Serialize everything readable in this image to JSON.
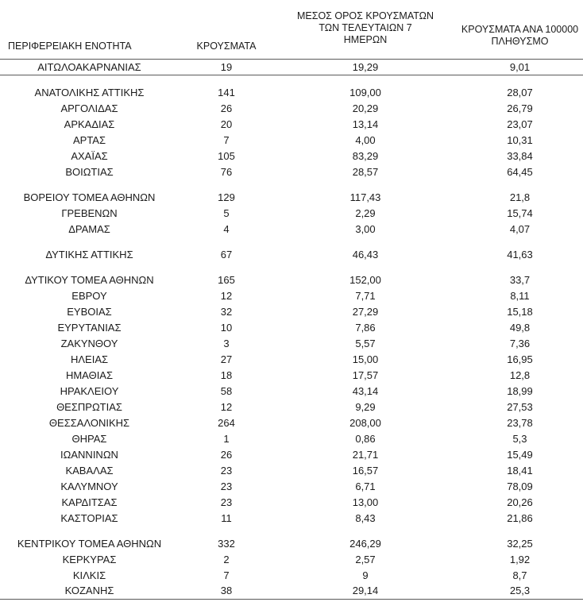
{
  "page": {
    "background": "#ffffff",
    "text_color": "#1b1b1b",
    "rule_color": "#5a5a5a"
  },
  "table": {
    "columns": [
      {
        "id": "region",
        "label": "ΠΕΡΙΦΕΡΕΙΑΚΗ ΕΝΟΤΗΤΑ"
      },
      {
        "id": "cases",
        "label": "ΚΡΟΥΣΜΑΤΑ"
      },
      {
        "id": "avg_7day",
        "label": "ΜΕΣΟΣ ΟΡΟΣ ΚΡΟΥΣΜΑΤΩΝ\nΤΩΝ ΤΕΛΕΥΤΑΙΩΝ 7\nΗΜΕΡΩΝ"
      },
      {
        "id": "per_100k",
        "label": "ΚΡΟΥΣΜΑΤΑ ΑΝΑ 100000\nΠΛΗΘΥΣΜΟ"
      }
    ],
    "groups": [
      {
        "start": 0,
        "count": 1,
        "rule_after": true
      },
      {
        "start": 1,
        "count": 6,
        "rule_after": false
      },
      {
        "start": 7,
        "count": 3,
        "rule_after": false
      },
      {
        "start": 10,
        "count": 1,
        "rule_after": false
      },
      {
        "start": 11,
        "count": 16,
        "rule_after": false
      },
      {
        "start": 27,
        "count": 4,
        "rule_after": false
      }
    ]
  },
  "chart_data": {
    "type": "table",
    "columns": [
      "ΠΕΡΙΦΕΡΕΙΑΚΗ ΕΝΟΤΗΤΑ",
      "ΚΡΟΥΣΜΑΤΑ",
      "ΜΕΣΟΣ ΟΡΟΣ ΚΡΟΥΣΜΑΤΩΝ ΤΩΝ ΤΕΛΕΥΤΑΙΩΝ 7 ΗΜΕΡΩΝ",
      "ΚΡΟΥΣΜΑΤΑ ΑΝΑ 100000 ΠΛΗΘΥΣΜΟ"
    ],
    "rows": [
      [
        "ΑΙΤΩΛΟΑΚΑΡΝΑΝΙΑΣ",
        "19",
        "19,29",
        "9,01"
      ],
      [
        "ΑΝΑΤΟΛΙΚΗΣ ΑΤΤΙΚΗΣ",
        "141",
        "109,00",
        "28,07"
      ],
      [
        "ΑΡΓΟΛΙΔΑΣ",
        "26",
        "20,29",
        "26,79"
      ],
      [
        "ΑΡΚΑΔΙΑΣ",
        "20",
        "13,14",
        "23,07"
      ],
      [
        "ΑΡΤΑΣ",
        "7",
        "4,00",
        "10,31"
      ],
      [
        "ΑΧΑΪΑΣ",
        "105",
        "83,29",
        "33,84"
      ],
      [
        "ΒΟΙΩΤΙΑΣ",
        "76",
        "28,57",
        "64,45"
      ],
      [
        "ΒΟΡΕΙΟΥ ΤΟΜΕΑ ΑΘΗΝΩΝ",
        "129",
        "117,43",
        "21,8"
      ],
      [
        "ΓΡΕΒΕΝΩΝ",
        "5",
        "2,29",
        "15,74"
      ],
      [
        "ΔΡΑΜΑΣ",
        "4",
        "3,00",
        "4,07"
      ],
      [
        "ΔΥΤΙΚΗΣ ΑΤΤΙΚΗΣ",
        "67",
        "46,43",
        "41,63"
      ],
      [
        "ΔΥΤΙΚΟΥ ΤΟΜΕΑ ΑΘΗΝΩΝ",
        "165",
        "152,00",
        "33,7"
      ],
      [
        "ΕΒΡΟΥ",
        "12",
        "7,71",
        "8,11"
      ],
      [
        "ΕΥΒΟΙΑΣ",
        "32",
        "27,29",
        "15,18"
      ],
      [
        "ΕΥΡΥΤΑΝΙΑΣ",
        "10",
        "7,86",
        "49,8"
      ],
      [
        "ΖΑΚΥΝΘΟΥ",
        "3",
        "5,57",
        "7,36"
      ],
      [
        "ΗΛΕΙΑΣ",
        "27",
        "15,00",
        "16,95"
      ],
      [
        "ΗΜΑΘΙΑΣ",
        "18",
        "17,57",
        "12,8"
      ],
      [
        "ΗΡΑΚΛΕΙΟΥ",
        "58",
        "43,14",
        "18,99"
      ],
      [
        "ΘΕΣΠΡΩΤΙΑΣ",
        "12",
        "9,29",
        "27,53"
      ],
      [
        "ΘΕΣΣΑΛΟΝΙΚΗΣ",
        "264",
        "208,00",
        "23,78"
      ],
      [
        "ΘΗΡΑΣ",
        "1",
        "0,86",
        "5,3"
      ],
      [
        "ΙΩΑΝΝΙΝΩΝ",
        "26",
        "21,71",
        "15,49"
      ],
      [
        "ΚΑΒΑΛΑΣ",
        "23",
        "16,57",
        "18,41"
      ],
      [
        "ΚΑΛΥΜΝΟΥ",
        "23",
        "6,71",
        "78,09"
      ],
      [
        "ΚΑΡΔΙΤΣΑΣ",
        "23",
        "13,00",
        "20,26"
      ],
      [
        "ΚΑΣΤΟΡΙΑΣ",
        "11",
        "8,43",
        "21,86"
      ],
      [
        "ΚΕΝΤΡΙΚΟΥ ΤΟΜΕΑ ΑΘΗΝΩΝ",
        "332",
        "246,29",
        "32,25"
      ],
      [
        "ΚΕΡΚΥΡΑΣ",
        "2",
        "2,57",
        "1,92"
      ],
      [
        "ΚΙΛΚΙΣ",
        "7",
        "9",
        "8,7"
      ],
      [
        "ΚΟΖΑΝΗΣ",
        "38",
        "29,14",
        "25,3"
      ]
    ]
  }
}
